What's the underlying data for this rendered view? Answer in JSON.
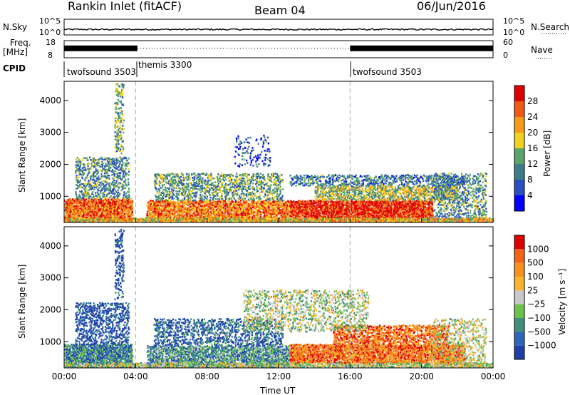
{
  "header": {
    "station": "Rankin Inlet (fitACF)",
    "beam": "Beam 04",
    "date": "06/Jun/2016"
  },
  "strips": {
    "nsky_label": "N.Sky",
    "nsky_ticks": [
      "10^5",
      "10^0"
    ],
    "nsearch_label": "N.Search",
    "nsearch_ticks": [
      "10^5",
      "10^0"
    ],
    "freq_label": "Freq.",
    "freq_unit": "[MHz]",
    "freq_ticks": [
      "18",
      "8"
    ],
    "nave_label": "Nave",
    "nave_ticks": [
      "60",
      "0"
    ],
    "cpid_label": "CPID",
    "cpid_segments": [
      {
        "name": "twofsound 3503",
        "start_hour": 0.0
      },
      {
        "name": "themis 3300",
        "start_hour": 4.1
      },
      {
        "name": "twofsound 3503",
        "start_hour": 16.0
      }
    ],
    "nsky_level": 0.35,
    "freq_level": 0.55
  },
  "chart_data": [
    {
      "type": "heatmap",
      "name": "power_panel",
      "ylabel": "Slant Range [km]",
      "xlim": [
        0,
        24
      ],
      "ylim": [
        180,
        4600
      ],
      "yticks": [
        "1000",
        "2000",
        "3000",
        "4000"
      ],
      "xticks": [
        "00:00",
        "04:00",
        "08:00",
        "12:00",
        "16:00",
        "20:00",
        "00:00"
      ],
      "colorbar": {
        "label": "Power [dB]",
        "ticks": [
          "4",
          "8",
          "12",
          "16",
          "20",
          "24",
          "28"
        ],
        "colors": [
          "#0000ff",
          "#2a4fc0",
          "#3d7d8a",
          "#5aa66a",
          "#f0d020",
          "#f79b1a",
          "#ef5a14",
          "#e00000"
        ]
      },
      "vlines_hours": [
        4.0,
        16.0
      ],
      "blobs": [
        {
          "t0": 0.0,
          "t1": 3.8,
          "r0": 180,
          "r1": 900,
          "lvl": 0.8,
          "dens": 0.95
        },
        {
          "t0": 0.6,
          "t1": 3.6,
          "r0": 900,
          "r1": 2200,
          "lvl": 0.35,
          "dens": 0.4
        },
        {
          "t0": 2.8,
          "t1": 3.3,
          "r0": 2300,
          "r1": 4500,
          "lvl": 0.4,
          "dens": 0.35
        },
        {
          "t0": 4.6,
          "t1": 12.6,
          "r0": 180,
          "r1": 850,
          "lvl": 0.75,
          "dens": 0.85
        },
        {
          "t0": 5.0,
          "t1": 12.2,
          "r0": 850,
          "r1": 1700,
          "lvl": 0.4,
          "dens": 0.45
        },
        {
          "t0": 12.6,
          "t1": 20.6,
          "r0": 180,
          "r1": 850,
          "lvl": 0.9,
          "dens": 0.95
        },
        {
          "t0": 12.6,
          "t1": 22.4,
          "r0": 1300,
          "r1": 1650,
          "lvl": 0.3,
          "dens": 0.45
        },
        {
          "t0": 14.0,
          "t1": 22.0,
          "r0": 850,
          "r1": 1300,
          "lvl": 0.5,
          "dens": 0.6
        },
        {
          "t0": 9.5,
          "t1": 11.5,
          "r0": 1900,
          "r1": 2900,
          "lvl": 0.2,
          "dens": 0.15
        },
        {
          "t0": 20.6,
          "t1": 23.6,
          "r0": 180,
          "r1": 1700,
          "lvl": 0.35,
          "dens": 0.35
        },
        {
          "t0": 0.0,
          "t1": 24.0,
          "r0": 180,
          "r1": 300,
          "lvl": 0.6,
          "dens": 0.9
        }
      ]
    },
    {
      "type": "heatmap",
      "name": "velocity_panel",
      "xlabel": "Time UT",
      "ylabel": "Slant Range [km]",
      "xlim": [
        0,
        24
      ],
      "ylim": [
        180,
        4600
      ],
      "yticks": [
        "1000",
        "2000",
        "3000",
        "4000"
      ],
      "xticks": [
        "00:00",
        "04:00",
        "08:00",
        "12:00",
        "16:00",
        "20:00",
        "00:00"
      ],
      "colorbar": {
        "label": "Velocity [m s⁻¹]",
        "ticks": [
          "1000",
          "500",
          "100",
          "25",
          "−25",
          "−100",
          "−500",
          "−1000"
        ],
        "colors": [
          "#1e3fa8",
          "#2f66b8",
          "#3f8f7a",
          "#6cc24a",
          "#c8c8c8",
          "#f7b32b",
          "#f7901e",
          "#f26514",
          "#e00000"
        ]
      },
      "vlines_hours": [
        4.0,
        16.0
      ],
      "blobs": [
        {
          "t0": 0.0,
          "t1": 3.8,
          "r0": 180,
          "r1": 900,
          "lvl": 0.22,
          "dens": 0.9
        },
        {
          "t0": 0.6,
          "t1": 3.6,
          "r0": 900,
          "r1": 2200,
          "lvl": 0.08,
          "dens": 0.4
        },
        {
          "t0": 2.8,
          "t1": 3.3,
          "r0": 2300,
          "r1": 4500,
          "lvl": 0.1,
          "dens": 0.35
        },
        {
          "t0": 4.6,
          "t1": 12.6,
          "r0": 180,
          "r1": 850,
          "lvl": 0.28,
          "dens": 0.8
        },
        {
          "t0": 5.0,
          "t1": 12.2,
          "r0": 850,
          "r1": 1700,
          "lvl": 0.15,
          "dens": 0.4
        },
        {
          "t0": 12.6,
          "t1": 22.4,
          "r0": 300,
          "r1": 900,
          "lvl": 0.78,
          "dens": 0.9
        },
        {
          "t0": 15.0,
          "t1": 21.5,
          "r0": 900,
          "r1": 1500,
          "lvl": 0.8,
          "dens": 0.6
        },
        {
          "t0": 0.0,
          "t1": 24.0,
          "r0": 180,
          "r1": 320,
          "lvl": 0.45,
          "dens": 0.85
        },
        {
          "t0": 10.0,
          "t1": 17.0,
          "r0": 1300,
          "r1": 2600,
          "lvl": 0.45,
          "dens": 0.3
        },
        {
          "t0": 20.6,
          "t1": 23.6,
          "r0": 180,
          "r1": 1700,
          "lvl": 0.5,
          "dens": 0.3
        }
      ]
    }
  ]
}
